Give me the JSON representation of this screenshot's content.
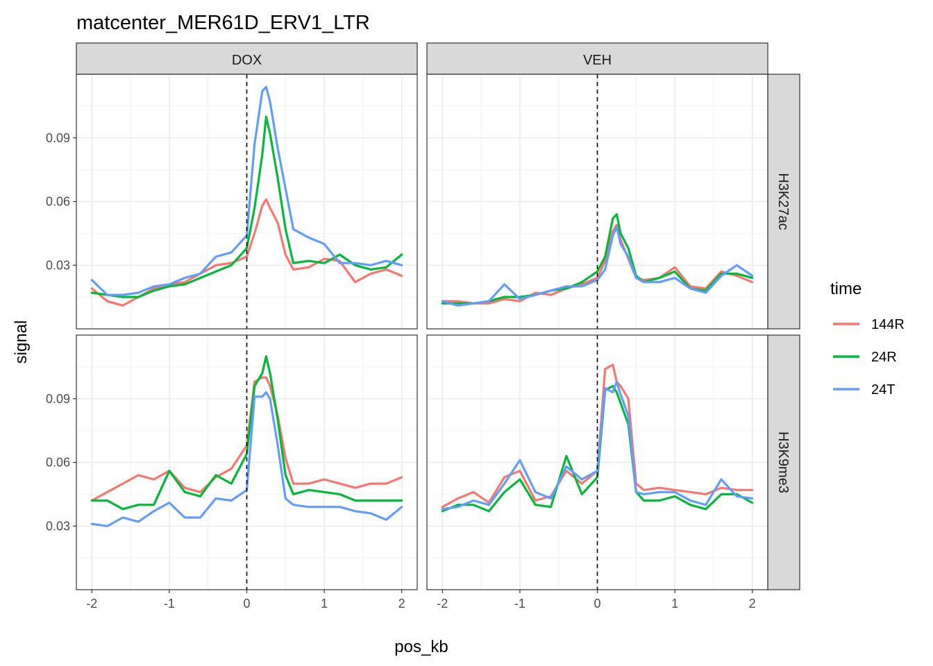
{
  "chart_data": {
    "type": "line",
    "title": "matcenter_MER61D_ERV1_LTR",
    "xlabel": "pos_kb",
    "ylabel": "signal",
    "xlim": [
      -2.2,
      2.2
    ],
    "ylim": [
      0.0,
      0.12
    ],
    "x_ticks": [
      -2,
      -1,
      0,
      1,
      2
    ],
    "x_tick_labels": [
      "-2",
      "-1",
      "0",
      "1",
      "2"
    ],
    "y_ticks": [
      0.03,
      0.06,
      0.09
    ],
    "y_tick_labels": [
      "0.03",
      "0.06",
      "0.09"
    ],
    "grid": true,
    "vline_x": 0,
    "columns": [
      "DOX",
      "VEH"
    ],
    "rows": [
      "H3K27ac",
      "H3K9me3"
    ],
    "legend": {
      "title": "time",
      "placement": "right",
      "entries": [
        {
          "name": "144R",
          "color": "#F8766D"
        },
        {
          "name": "24R",
          "color": "#00BA38"
        },
        {
          "name": "24T",
          "color": "#619CFF"
        }
      ]
    },
    "x": [
      -2.0,
      -1.8,
      -1.6,
      -1.4,
      -1.2,
      -1.0,
      -0.8,
      -0.6,
      -0.4,
      -0.2,
      0.0,
      0.1,
      0.2,
      0.25,
      0.3,
      0.4,
      0.5,
      0.6,
      0.8,
      1.0,
      1.2,
      1.4,
      1.6,
      1.8,
      2.0
    ],
    "panels": [
      {
        "col": "DOX",
        "row": "H3K27ac",
        "series": [
          {
            "name": "144R",
            "values": [
              0.019,
              0.013,
              0.011,
              0.015,
              0.019,
              0.021,
              0.022,
              0.026,
              0.03,
              0.031,
              0.034,
              0.045,
              0.058,
              0.061,
              0.057,
              0.05,
              0.035,
              0.028,
              0.029,
              0.033,
              0.032,
              0.022,
              0.026,
              0.028,
              0.025
            ]
          },
          {
            "name": "24R",
            "values": [
              0.017,
              0.016,
              0.015,
              0.015,
              0.018,
              0.02,
              0.021,
              0.024,
              0.027,
              0.03,
              0.038,
              0.057,
              0.082,
              0.1,
              0.092,
              0.071,
              0.047,
              0.031,
              0.032,
              0.031,
              0.035,
              0.03,
              0.028,
              0.029,
              0.035
            ]
          },
          {
            "name": "24T",
            "values": [
              0.023,
              0.016,
              0.016,
              0.017,
              0.02,
              0.021,
              0.024,
              0.026,
              0.034,
              0.036,
              0.044,
              0.087,
              0.112,
              0.114,
              0.107,
              0.085,
              0.066,
              0.047,
              0.043,
              0.04,
              0.031,
              0.031,
              0.03,
              0.032,
              0.03
            ]
          }
        ]
      },
      {
        "col": "VEH",
        "row": "H3K27ac",
        "series": [
          {
            "name": "144R",
            "values": [
              0.013,
              0.013,
              0.012,
              0.012,
              0.014,
              0.013,
              0.017,
              0.016,
              0.019,
              0.021,
              0.024,
              0.032,
              0.046,
              0.049,
              0.042,
              0.033,
              0.024,
              0.023,
              0.024,
              0.029,
              0.02,
              0.019,
              0.027,
              0.025,
              0.022
            ]
          },
          {
            "name": "24R",
            "values": [
              0.012,
              0.012,
              0.012,
              0.013,
              0.015,
              0.015,
              0.016,
              0.018,
              0.019,
              0.022,
              0.027,
              0.034,
              0.052,
              0.054,
              0.045,
              0.038,
              0.025,
              0.022,
              0.024,
              0.027,
              0.019,
              0.018,
              0.026,
              0.026,
              0.024
            ]
          },
          {
            "name": "24T",
            "values": [
              0.013,
              0.011,
              0.012,
              0.013,
              0.021,
              0.014,
              0.016,
              0.018,
              0.02,
              0.02,
              0.023,
              0.028,
              0.044,
              0.048,
              0.04,
              0.034,
              0.024,
              0.022,
              0.022,
              0.024,
              0.019,
              0.017,
              0.025,
              0.03,
              0.025
            ]
          }
        ]
      },
      {
        "col": "DOX",
        "row": "H3K9me3",
        "series": [
          {
            "name": "144R",
            "values": [
              0.042,
              0.046,
              0.05,
              0.054,
              0.052,
              0.056,
              0.048,
              0.046,
              0.053,
              0.057,
              0.068,
              0.098,
              0.1,
              0.1,
              0.096,
              0.082,
              0.062,
              0.05,
              0.05,
              0.052,
              0.05,
              0.048,
              0.05,
              0.05,
              0.053
            ]
          },
          {
            "name": "24R",
            "values": [
              0.042,
              0.042,
              0.038,
              0.04,
              0.04,
              0.056,
              0.046,
              0.044,
              0.054,
              0.05,
              0.064,
              0.096,
              0.102,
              0.11,
              0.102,
              0.08,
              0.054,
              0.045,
              0.047,
              0.046,
              0.045,
              0.042,
              0.042,
              0.042,
              0.042
            ]
          },
          {
            "name": "24T",
            "values": [
              0.031,
              0.03,
              0.034,
              0.032,
              0.037,
              0.041,
              0.034,
              0.034,
              0.043,
              0.042,
              0.047,
              0.091,
              0.091,
              0.093,
              0.09,
              0.068,
              0.043,
              0.04,
              0.039,
              0.039,
              0.039,
              0.037,
              0.036,
              0.033,
              0.039
            ]
          }
        ]
      },
      {
        "col": "VEH",
        "row": "H3K9me3",
        "series": [
          {
            "name": "144R",
            "values": [
              0.039,
              0.043,
              0.046,
              0.041,
              0.053,
              0.056,
              0.042,
              0.044,
              0.056,
              0.05,
              0.056,
              0.104,
              0.106,
              0.098,
              0.096,
              0.09,
              0.05,
              0.047,
              0.048,
              0.047,
              0.046,
              0.045,
              0.048,
              0.047,
              0.047
            ]
          },
          {
            "name": "24R",
            "values": [
              0.037,
              0.04,
              0.04,
              0.037,
              0.046,
              0.052,
              0.04,
              0.039,
              0.063,
              0.045,
              0.053,
              0.094,
              0.096,
              0.093,
              0.088,
              0.078,
              0.046,
              0.042,
              0.042,
              0.044,
              0.04,
              0.038,
              0.045,
              0.045,
              0.041
            ]
          },
          {
            "name": "24T",
            "values": [
              0.038,
              0.039,
              0.042,
              0.04,
              0.05,
              0.061,
              0.046,
              0.043,
              0.058,
              0.052,
              0.056,
              0.095,
              0.093,
              0.098,
              0.092,
              0.082,
              0.046,
              0.045,
              0.046,
              0.046,
              0.042,
              0.04,
              0.052,
              0.044,
              0.043
            ]
          }
        ]
      }
    ]
  }
}
